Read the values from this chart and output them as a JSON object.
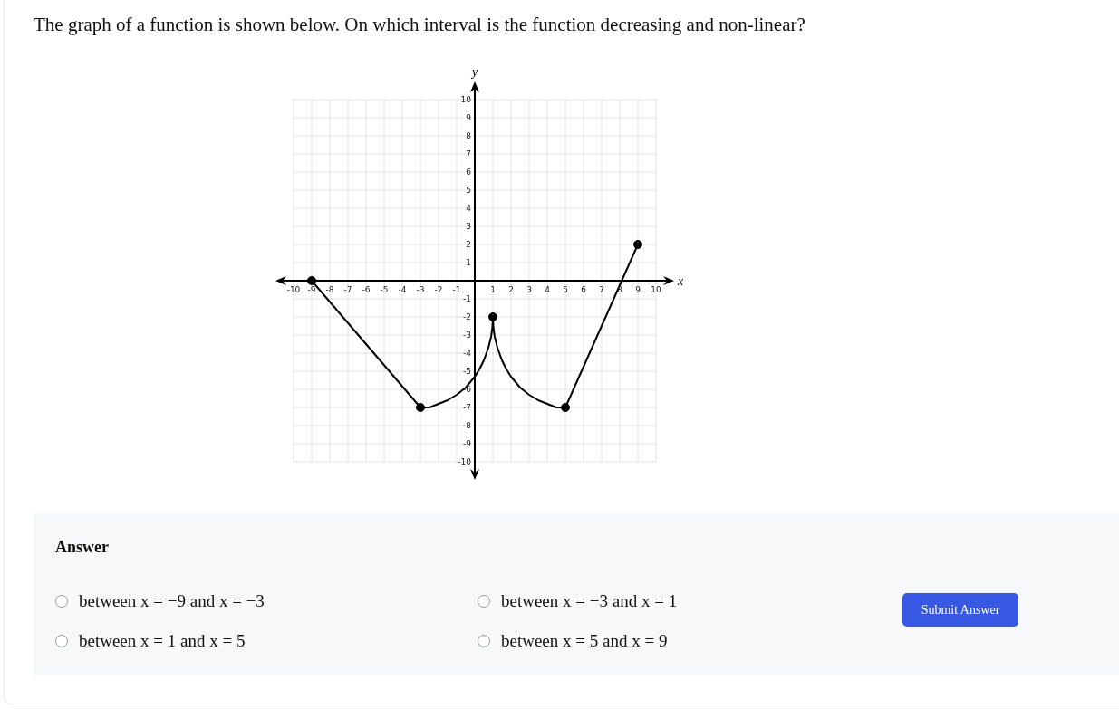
{
  "chart_data": {
    "type": "line",
    "title": "The graph of a function is shown below. On which interval is the function decreasing and non-linear?",
    "xlabel": "x",
    "ylabel": "y",
    "xlim": [
      -10,
      10
    ],
    "ylim": [
      -10,
      10
    ],
    "xticks": [
      -10,
      -9,
      -8,
      -7,
      -6,
      -5,
      -4,
      -3,
      -2,
      -1,
      1,
      2,
      3,
      4,
      5,
      6,
      7,
      8,
      9,
      10
    ],
    "yticks": [
      -10,
      -9,
      -8,
      -7,
      -6,
      -5,
      -4,
      -3,
      -2,
      -1,
      1,
      2,
      3,
      4,
      5,
      6,
      7,
      8,
      9,
      10
    ],
    "grid": true,
    "series": [
      {
        "type": "line",
        "color": "#000000",
        "marker": "none",
        "line_style": "solid",
        "x": [
          -9,
          -3,
          -2.5,
          -2,
          -1.5,
          -1,
          -0.5,
          0,
          0.25,
          0.5,
          0.75,
          0.9,
          0.97,
          1,
          1.03,
          1.1,
          1.25,
          1.5,
          1.75,
          2,
          2.5,
          3,
          3.5,
          4,
          4.5,
          5,
          9
        ],
        "values": [
          0,
          -7,
          -7,
          -6.8,
          -6.6,
          -6.3,
          -5.9,
          -5.3,
          -4.9,
          -4.4,
          -3.7,
          -3.1,
          -2.6,
          -2,
          -2.6,
          -3.1,
          -3.7,
          -4.4,
          -4.9,
          -5.3,
          -5.9,
          -6.3,
          -6.6,
          -6.8,
          -7,
          -7,
          2
        ]
      },
      {
        "type": "scatter",
        "color": "#000000",
        "marker": "circle",
        "x": [
          -9,
          -3,
          1,
          5,
          9
        ],
        "values": [
          0,
          -7,
          -2,
          -7,
          2
        ]
      }
    ],
    "annotations": [
      "Answer",
      "between x = −9 and x = −3",
      "between x = −3 and x = 1",
      "between x = 1 and x = 5",
      "between x = 5 and x = 9",
      "Submit Answer"
    ]
  }
}
